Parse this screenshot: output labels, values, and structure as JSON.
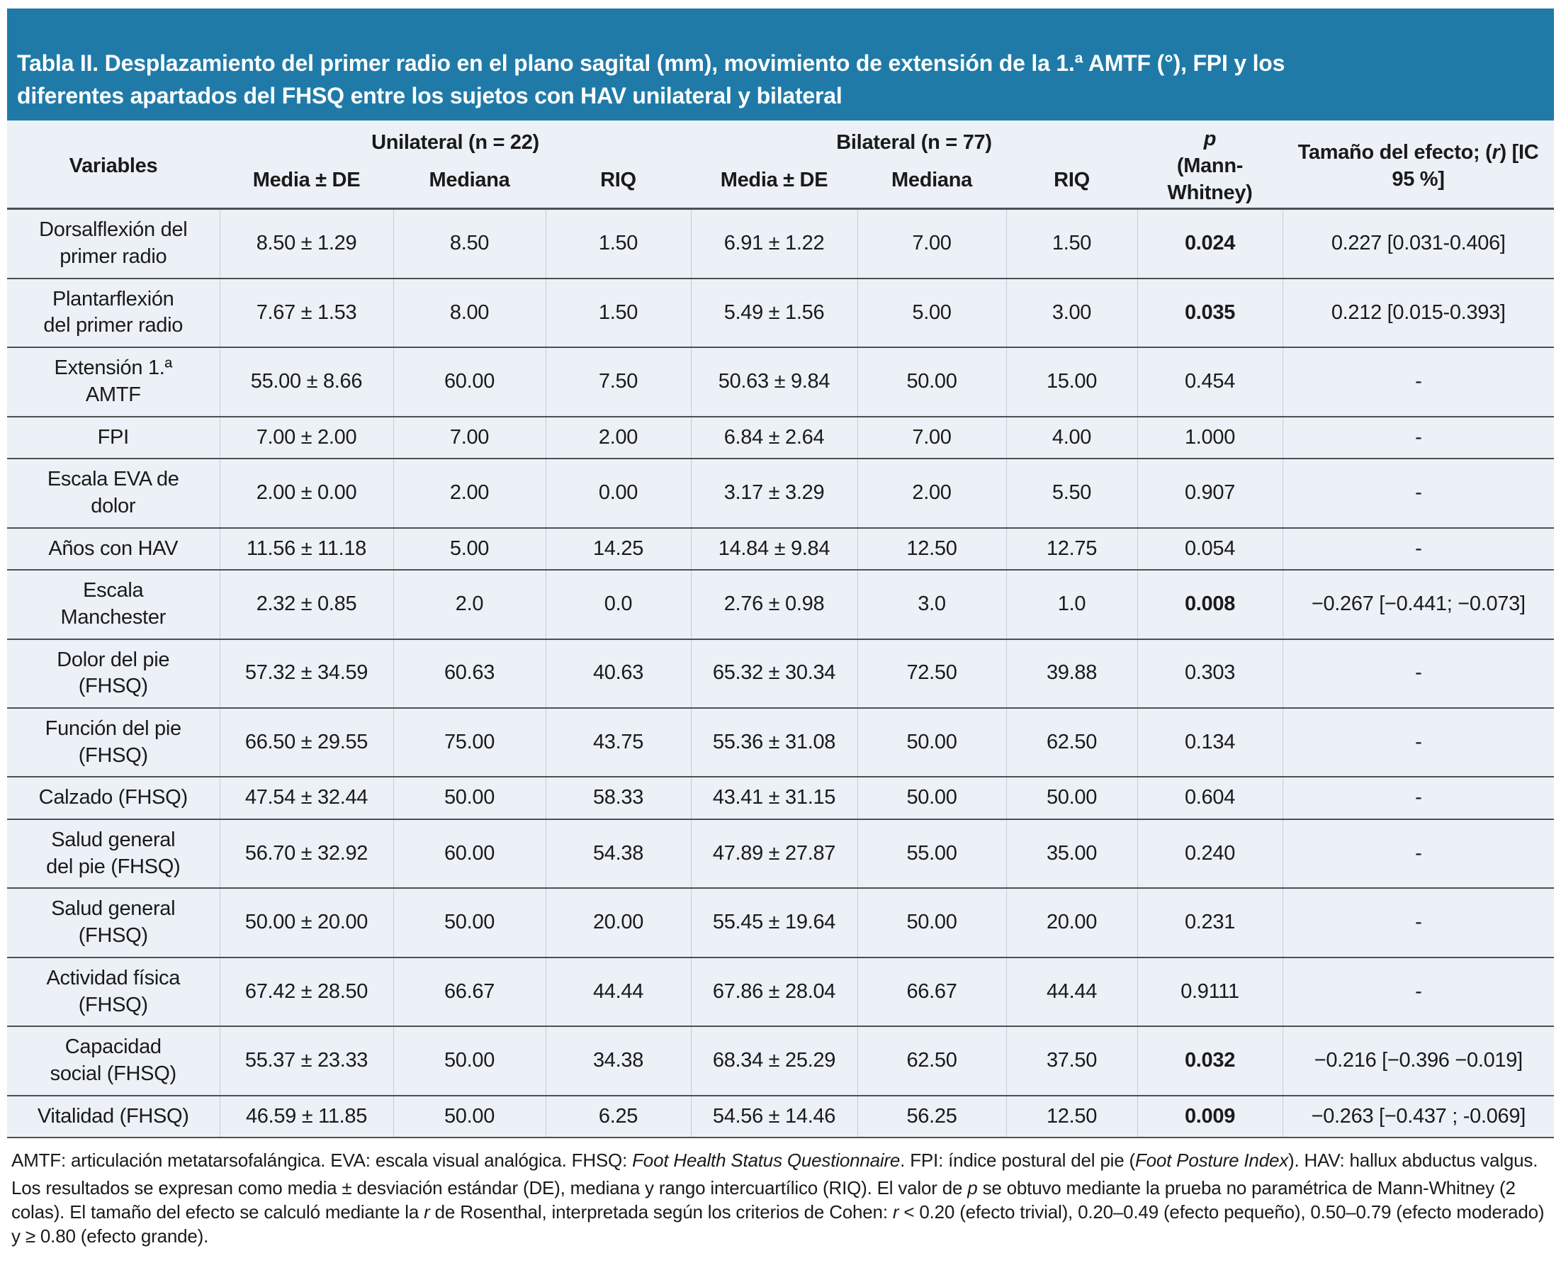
{
  "title": "Tabla II. Desplazamiento del primer radio en el plano sagital (mm), movimiento de extensión de la 1.ª AMTF (°), FPI y los\ndiferentes apartados del FHSQ entre los sujetos con HAV unilateral y bilateral",
  "colors": {
    "title_bar": "#1F7AA8",
    "title_text": "#FFFFFF",
    "table_bg": "#ECF0F7",
    "rule_dark": "#4F4F4F",
    "rule_light": "#C6CDDA",
    "text": "#1A1A1A",
    "page_bg": "#FFFFFF"
  },
  "header": {
    "variables": "Variables",
    "unilateral": "Unilateral (n = 22)",
    "bilateral": "Bilateral (n = 77)",
    "sub_media": "Media ± DE",
    "sub_mediana": "Mediana",
    "sub_riq": "RIQ",
    "p_line": [
      {
        "t": "p",
        "i": true
      }
    ],
    "p_sub": "(Mann-Whitney)",
    "efecto": [
      {
        "t": "Tamaño del efecto; ("
      },
      {
        "t": "r",
        "i": true
      },
      {
        "t": ") [IC 95 %]"
      }
    ]
  },
  "rows": [
    {
      "v": "Dorsalflexión del\nprimer radio",
      "um": "8.50 ± 1.29",
      "umed": "8.50",
      "uriq": "1.50",
      "bm": "6.91 ± 1.22",
      "bmed": "7.00",
      "briq": "1.50",
      "p": "0.024",
      "pb": true,
      "ef": "0.227 [0.031-0.406]"
    },
    {
      "v": "Plantarflexión\ndel primer radio",
      "um": "7.67 ± 1.53",
      "umed": "8.00",
      "uriq": "1.50",
      "bm": "5.49 ± 1.56",
      "bmed": "5.00",
      "briq": "3.00",
      "p": "0.035",
      "pb": true,
      "ef": "0.212 [0.015-0.393]"
    },
    {
      "v": "Extensión 1.ª\nAMTF",
      "um": "55.00 ± 8.66",
      "umed": "60.00",
      "uriq": "7.50",
      "bm": "50.63 ± 9.84",
      "bmed": "50.00",
      "briq": "15.00",
      "p": "0.454",
      "pb": false,
      "ef": "-"
    },
    {
      "v": "FPI",
      "um": "7.00 ± 2.00",
      "umed": "7.00",
      "uriq": "2.00",
      "bm": "6.84 ± 2.64",
      "bmed": "7.00",
      "briq": "4.00",
      "p": "1.000",
      "pb": false,
      "ef": "-"
    },
    {
      "v": "Escala EVA de\ndolor",
      "um": "2.00 ± 0.00",
      "umed": "2.00",
      "uriq": "0.00",
      "bm": "3.17 ± 3.29",
      "bmed": "2.00",
      "briq": "5.50",
      "p": "0.907",
      "pb": false,
      "ef": "-"
    },
    {
      "v": "Años con HAV",
      "um": "11.56 ± 11.18",
      "umed": "5.00",
      "uriq": "14.25",
      "bm": "14.84 ± 9.84",
      "bmed": "12.50",
      "briq": "12.75",
      "p": "0.054",
      "pb": false,
      "ef": "-"
    },
    {
      "v": "Escala\nManchester",
      "um": "2.32 ± 0.85",
      "umed": "2.0",
      "uriq": "0.0",
      "bm": "2.76 ± 0.98",
      "bmed": "3.0",
      "briq": "1.0",
      "p": "0.008",
      "pb": true,
      "ef": "−0.267 [−0.441; −0.073]"
    },
    {
      "v": "Dolor del pie\n(FHSQ)",
      "um": "57.32 ± 34.59",
      "umed": "60.63",
      "uriq": "40.63",
      "bm": "65.32 ± 30.34",
      "bmed": "72.50",
      "briq": "39.88",
      "p": "0.303",
      "pb": false,
      "ef": "-"
    },
    {
      "v": "Función del pie\n(FHSQ)",
      "um": "66.50 ± 29.55",
      "umed": "75.00",
      "uriq": "43.75",
      "bm": "55.36 ± 31.08",
      "bmed": "50.00",
      "briq": "62.50",
      "p": "0.134",
      "pb": false,
      "ef": "-"
    },
    {
      "v": "Calzado (FHSQ)",
      "um": "47.54 ± 32.44",
      "umed": "50.00",
      "uriq": "58.33",
      "bm": "43.41 ± 31.15",
      "bmed": "50.00",
      "briq": "50.00",
      "p": "0.604",
      "pb": false,
      "ef": "-"
    },
    {
      "v": "Salud general\ndel pie (FHSQ)",
      "um": "56.70 ± 32.92",
      "umed": "60.00",
      "uriq": "54.38",
      "bm": "47.89 ± 27.87",
      "bmed": "55.00",
      "briq": "35.00",
      "p": "0.240",
      "pb": false,
      "ef": "-"
    },
    {
      "v": "Salud general\n(FHSQ)",
      "um": "50.00 ± 20.00",
      "umed": "50.00",
      "uriq": "20.00",
      "bm": "55.45 ± 19.64",
      "bmed": "50.00",
      "briq": "20.00",
      "p": "0.231",
      "pb": false,
      "ef": "-"
    },
    {
      "v": "Actividad física\n(FHSQ)",
      "um": "67.42 ± 28.50",
      "umed": "66.67",
      "uriq": "44.44",
      "bm": "67.86 ± 28.04",
      "bmed": "66.67",
      "briq": "44.44",
      "p": "0.9111",
      "pb": false,
      "ef": "-"
    },
    {
      "v": "Capacidad\nsocial (FHSQ)",
      "um": "55.37 ± 23.33",
      "umed": "50.00",
      "uriq": "34.38",
      "bm": "68.34 ± 25.29",
      "bmed": "62.50",
      "briq": "37.50",
      "p": "0.032",
      "pb": true,
      "ef": "−0.216 [−0.396 −0.019]"
    },
    {
      "v": "Vitalidad (FHSQ)",
      "um": "46.59 ± 11.85",
      "umed": "50.00",
      "uriq": "6.25",
      "bm": "54.56 ± 14.46",
      "bmed": "56.25",
      "briq": "12.50",
      "p": "0.009",
      "pb": true,
      "ef": "−0.263 [−0.437 ; -0.069]"
    }
  ],
  "footnotes": [
    [
      {
        "t": "AMTF: articulación metatarsofalángica. EVA: escala visual analógica. FHSQ: "
      },
      {
        "t": "Foot Health Status Questionnaire",
        "i": true
      },
      {
        "t": ". FPI: índice postural del pie ("
      },
      {
        "t": "Foot Posture Index",
        "i": true
      },
      {
        "t": "). HAV: hallux abductus valgus."
      }
    ],
    [
      {
        "t": "Los resultados se expresan como media ± desviación estándar (DE), mediana y rango intercuartílico (RIQ). El valor de "
      },
      {
        "t": "p",
        "i": true
      },
      {
        "t": " se obtuvo mediante la prueba no paramétrica de Mann-Whitney (2 colas). El tamaño del efecto se calculó mediante la "
      },
      {
        "t": "r",
        "i": true
      },
      {
        "t": " de Rosenthal, interpretada según los criterios de Cohen: "
      },
      {
        "t": "r",
        "i": true
      },
      {
        "t": " < 0.20 (efecto trivial), 0.20–0.49 (efecto pequeño), 0.50–0.79 (efecto moderado) y ≥ 0.80 (efecto grande)."
      }
    ]
  ]
}
